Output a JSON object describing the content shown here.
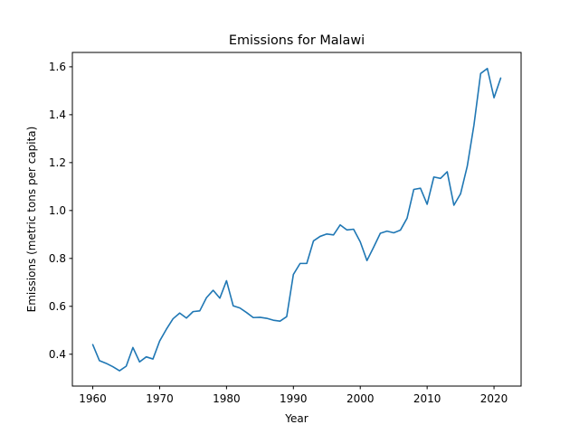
{
  "chart_data": {
    "type": "line",
    "title": "Emissions for Malawi",
    "xlabel": "Year",
    "ylabel": "Emissions (metric tons per capita)",
    "xlim": [
      1956.95,
      2024.05
    ],
    "ylim": [
      0.267,
      1.66
    ],
    "xticks": [
      1960,
      1970,
      1980,
      1990,
      2000,
      2010,
      2020
    ],
    "yticks": [
      0.4,
      0.6,
      0.8,
      1.0,
      1.2,
      1.4,
      1.6
    ],
    "xtick_labels": [
      "1960",
      "1970",
      "1980",
      "1990",
      "2000",
      "2010",
      "2020"
    ],
    "ytick_labels": [
      "0.4",
      "0.6",
      "0.8",
      "1.0",
      "1.2",
      "1.4",
      "1.6"
    ],
    "grid": false,
    "color": "#1f77b4",
    "series": [
      {
        "x": [
          1960,
          1961,
          1962,
          1963,
          1964,
          1965,
          1966,
          1967,
          1968,
          1969,
          1970,
          1971,
          1972,
          1973,
          1974,
          1975,
          1976,
          1977,
          1978,
          1979,
          1980,
          1981,
          1982,
          1983,
          1984,
          1985,
          1986,
          1987,
          1988,
          1989,
          1990,
          1991,
          1992,
          1993,
          1994,
          1995,
          1996,
          1997,
          1998,
          1999,
          2000,
          2001,
          2002,
          2003,
          2004,
          2005,
          2006,
          2007,
          2008,
          2009,
          2010,
          2011,
          2012,
          2013,
          2014,
          2015,
          2016,
          2017,
          2018,
          2019,
          2020,
          2021
        ],
        "values": [
          0.44,
          0.373,
          0.362,
          0.348,
          0.331,
          0.35,
          0.428,
          0.368,
          0.389,
          0.38,
          0.455,
          0.504,
          0.548,
          0.572,
          0.551,
          0.578,
          0.581,
          0.636,
          0.667,
          0.634,
          0.707,
          0.602,
          0.593,
          0.574,
          0.553,
          0.554,
          0.55,
          0.542,
          0.538,
          0.557,
          0.733,
          0.779,
          0.779,
          0.873,
          0.892,
          0.902,
          0.898,
          0.94,
          0.919,
          0.922,
          0.869,
          0.791,
          0.847,
          0.905,
          0.914,
          0.907,
          0.918,
          0.968,
          1.088,
          1.093,
          1.026,
          1.14,
          1.134,
          1.162,
          1.022,
          1.07,
          1.185,
          1.357,
          1.572,
          1.593,
          1.471,
          1.553
        ]
      }
    ]
  }
}
